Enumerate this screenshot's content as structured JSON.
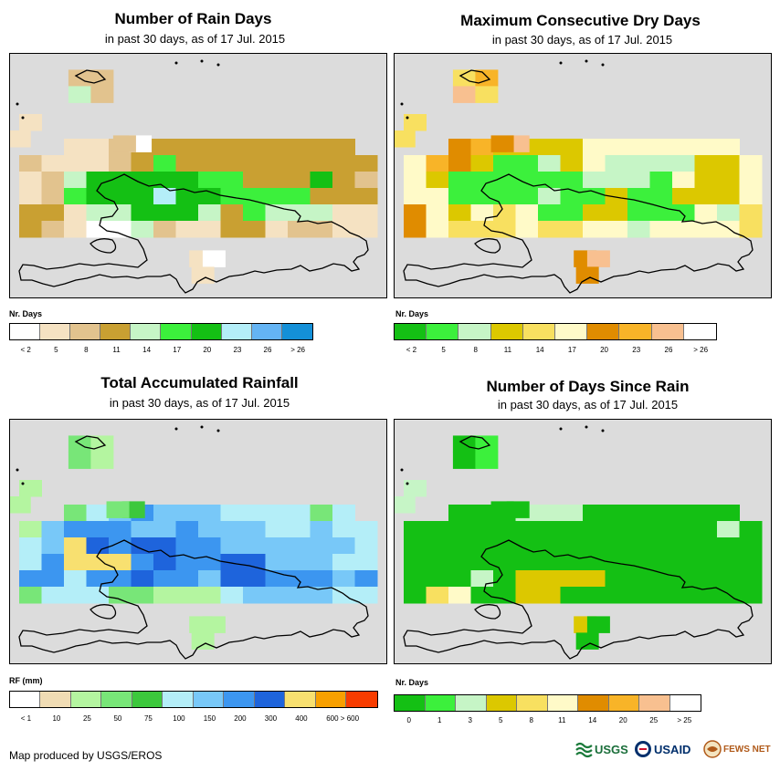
{
  "panels": [
    {
      "id": "rain-days",
      "title": "Number of Rain Days",
      "subtitle": "in past 30 days, as of 17 Jul. 2015",
      "legend_label": "Nr. Days",
      "legend_colors": [
        "#ffffff",
        "#f5e2c2",
        "#e2c38e",
        "#c9a032",
        "#c6f5c6",
        "#3cf03c",
        "#14c014",
        "#b4eef8",
        "#64b4f4",
        "#1490d8"
      ],
      "legend_ticks": [
        "< 2",
        "5",
        "8",
        "11",
        "14",
        "17",
        "20",
        "23",
        "26",
        "> 26"
      ],
      "tick_positions": "boundary",
      "cells": [
        [
          "e2c38e",
          "f5e2c2",
          "f5e2c2",
          "f5e2c2",
          "e2c38e",
          "c9a032",
          "c9a032",
          "c9a032",
          "c9a032",
          "c9a032",
          "c9a032",
          "c9a032",
          "c9a032",
          "c9a032",
          "c9a032",
          "e2c38e"
        ],
        [
          "e2c38e",
          "f5e2c2",
          "f5e2c2",
          "f5e2c2",
          "e2c38e",
          "c9a032",
          "3cf03c",
          "c9a032",
          "c9a032",
          "c9a032",
          "c9a032",
          "c9a032",
          "c9a032",
          "c9a032",
          "c9a032",
          "c9a032"
        ],
        [
          "f5e2c2",
          "e2c38e",
          "c6f5c6",
          "14c014",
          "14c014",
          "14c014",
          "14c014",
          "14c014",
          "3cf03c",
          "3cf03c",
          "c9a032",
          "c9a032",
          "c9a032",
          "14c014",
          "c9a032",
          "e2c38e"
        ],
        [
          "f5e2c2",
          "e2c38e",
          "3cf03c",
          "14c014",
          "14c014",
          "14c014",
          "b4eef8",
          "14c014",
          "14c014",
          "3cf03c",
          "3cf03c",
          "3cf03c",
          "3cf03c",
          "c9a032",
          "c9a032",
          "c9a032"
        ],
        [
          "c9a032",
          "c9a032",
          "f5e2c2",
          "c6f5c6",
          "c6f5c6",
          "14c014",
          "14c014",
          "14c014",
          "c6f5c6",
          "c9a032",
          "3cf03c",
          "c6f5c6",
          "c6f5c6",
          "c6f5c6",
          "f5e2c2",
          "f5e2c2"
        ],
        [
          "c9a032",
          "e2c38e",
          "f5e2c2",
          "ffffff",
          "ffffff",
          "c6f5c6",
          "e2c38e",
          "f5e2c2",
          "f5e2c2",
          "c9a032",
          "c9a032",
          "f5e2c2",
          "e2c38e",
          "e2c38e",
          "f5e2c2",
          "f5e2c2"
        ]
      ],
      "extra_cells": [
        {
          "col": 2.2,
          "row": -5,
          "c": "e2c38e"
        },
        {
          "col": 3.2,
          "row": -5,
          "c": "e2c38e"
        },
        {
          "col": 2.2,
          "row": -4,
          "c": "c6f5c6"
        },
        {
          "col": 3.2,
          "row": -4,
          "c": "e2c38e"
        },
        {
          "col": 0,
          "row": -2.3,
          "c": "f5e2c2"
        },
        {
          "col": -0.5,
          "row": -1.3,
          "c": "f5e2c2"
        },
        {
          "col": 4.9,
          "row": -1,
          "c": "ffffff"
        },
        {
          "col": 4.2,
          "row": -1,
          "c": "e2c38e"
        },
        {
          "col": 7.6,
          "row": 6,
          "c": "f5e2c2"
        },
        {
          "col": 8.2,
          "row": 6,
          "c": "ffffff"
        },
        {
          "col": 7.7,
          "row": 7,
          "c": "f5e2c2"
        }
      ]
    },
    {
      "id": "dry-days",
      "title": "Maximum Consecutive Dry Days",
      "subtitle": "in past 30 days, as of 17 Jul. 2015",
      "legend_label": "Nr. Days",
      "legend_colors": [
        "#14c014",
        "#3cf03c",
        "#c6f5c6",
        "#dcc800",
        "#f8e060",
        "#fffac8",
        "#e08c00",
        "#f8b428",
        "#f8c090",
        "#ffffff"
      ],
      "legend_ticks": [
        "< 2",
        "5",
        "8",
        "11",
        "14",
        "17",
        "20",
        "23",
        "26",
        "> 26"
      ],
      "tick_positions": "boundary",
      "cells": [
        [
          "fffac8",
          "e08c00",
          "e08c00",
          "f8b428",
          "dcc800",
          "dcc800",
          "dcc800",
          "dcc800",
          "fffac8",
          "fffac8",
          "fffac8",
          "fffac8",
          "fffac8",
          "fffac8",
          "fffac8",
          "fffac8"
        ],
        [
          "fffac8",
          "f8b428",
          "e08c00",
          "dcc800",
          "3cf03c",
          "3cf03c",
          "c6f5c6",
          "dcc800",
          "fffac8",
          "c6f5c6",
          "c6f5c6",
          "c6f5c6",
          "c6f5c6",
          "dcc800",
          "dcc800",
          "fffac8"
        ],
        [
          "fffac8",
          "dcc800",
          "3cf03c",
          "3cf03c",
          "3cf03c",
          "3cf03c",
          "3cf03c",
          "3cf03c",
          "c6f5c6",
          "c6f5c6",
          "c6f5c6",
          "3cf03c",
          "fffac8",
          "dcc800",
          "dcc800",
          "fffac8"
        ],
        [
          "fffac8",
          "fffac8",
          "3cf03c",
          "3cf03c",
          "3cf03c",
          "3cf03c",
          "c6f5c6",
          "3cf03c",
          "3cf03c",
          "dcc800",
          "3cf03c",
          "3cf03c",
          "dcc800",
          "dcc800",
          "dcc800",
          "fffac8"
        ],
        [
          "e08c00",
          "fffac8",
          "dcc800",
          "fffac8",
          "f8e060",
          "fffac8",
          "3cf03c",
          "3cf03c",
          "dcc800",
          "dcc800",
          "3cf03c",
          "3cf03c",
          "3cf03c",
          "fffac8",
          "c6f5c6",
          "f8e060"
        ],
        [
          "e08c00",
          "fffac8",
          "f8e060",
          "f8e060",
          "f8e060",
          "fffac8",
          "f8e060",
          "f8e060",
          "fffac8",
          "fffac8",
          "c6f5c6",
          "fffac8",
          "fffac8",
          "fffac8",
          "fffac8",
          "f8e060"
        ]
      ],
      "extra_cells": [
        {
          "col": 2.2,
          "row": -5,
          "c": "f8e060"
        },
        {
          "col": 3.2,
          "row": -5,
          "c": "f8b428"
        },
        {
          "col": 2.2,
          "row": -4,
          "c": "f8c090"
        },
        {
          "col": 3.2,
          "row": -4,
          "c": "f8e060"
        },
        {
          "col": 0,
          "row": -2.3,
          "c": "f8e060"
        },
        {
          "col": -0.5,
          "row": -1.3,
          "c": "f8e060"
        },
        {
          "col": 4.6,
          "row": -1,
          "c": "f8c090"
        },
        {
          "col": 3.9,
          "row": -1,
          "c": "e08c00"
        },
        {
          "col": 7.6,
          "row": 6,
          "c": "e08c00"
        },
        {
          "col": 8.2,
          "row": 6,
          "c": "f8c090"
        },
        {
          "col": 7.7,
          "row": 7,
          "c": "e08c00"
        }
      ]
    },
    {
      "id": "total-rainfall",
      "title": "Total Accumulated Rainfall",
      "subtitle": "in past 30 days, as of 17 Jul. 2015",
      "legend_label": "RF (mm)",
      "legend_colors": [
        "#ffffff",
        "#f0dcb4",
        "#b4f5a0",
        "#78e678",
        "#3cc83c",
        "#b4eef8",
        "#78c8f8",
        "#3c96f0",
        "#1e64dc",
        "#f8e070",
        "#f8a000",
        "#f83c00"
      ],
      "legend_ticks": [
        "< 1",
        "10",
        "25",
        "50",
        "75",
        "100",
        "150",
        "200",
        "300",
        "400",
        "600 > 600"
      ],
      "tick_positions": "boundary",
      "cells": [
        [
          "b4f5a0",
          "78e678",
          "78e678",
          "b4eef8",
          "78c8f8",
          "3c96f0",
          "78c8f8",
          "78c8f8",
          "78c8f8",
          "b4eef8",
          "b4eef8",
          "b4eef8",
          "b4eef8",
          "78e678",
          "b4eef8",
          "b4eef8"
        ],
        [
          "b4f5a0",
          "78c8f8",
          "3c96f0",
          "3c96f0",
          "3c96f0",
          "78c8f8",
          "78c8f8",
          "3c96f0",
          "78c8f8",
          "78c8f8",
          "78c8f8",
          "b4eef8",
          "b4eef8",
          "78c8f8",
          "b4eef8",
          "b4eef8"
        ],
        [
          "b4eef8",
          "78c8f8",
          "f8e070",
          "1e64dc",
          "3c96f0",
          "1e64dc",
          "1e64dc",
          "3c96f0",
          "3c96f0",
          "78c8f8",
          "78c8f8",
          "78c8f8",
          "78c8f8",
          "78c8f8",
          "78c8f8",
          "b4eef8"
        ],
        [
          "b4eef8",
          "3c96f0",
          "f8e070",
          "f8e070",
          "f8e070",
          "3c96f0",
          "1e64dc",
          "3c96f0",
          "3c96f0",
          "1e64dc",
          "1e64dc",
          "78c8f8",
          "78c8f8",
          "78c8f8",
          "b4eef8",
          "b4eef8"
        ],
        [
          "3c96f0",
          "3c96f0",
          "b4eef8",
          "3c96f0",
          "3c96f0",
          "1e64dc",
          "3c96f0",
          "3c96f0",
          "78c8f8",
          "1e64dc",
          "1e64dc",
          "3c96f0",
          "3c96f0",
          "3c96f0",
          "78c8f8",
          "3c96f0"
        ],
        [
          "78e678",
          "b4eef8",
          "b4eef8",
          "b4eef8",
          "78e678",
          "78e678",
          "b4f5a0",
          "b4f5a0",
          "b4f5a0",
          "b4eef8",
          "78c8f8",
          "78c8f8",
          "78c8f8",
          "78c8f8",
          "b4eef8",
          "b4eef8"
        ]
      ],
      "extra_cells": [
        {
          "col": 2.2,
          "row": -5,
          "c": "78e678"
        },
        {
          "col": 3.2,
          "row": -5,
          "c": "b4f5a0"
        },
        {
          "col": 2.2,
          "row": -4,
          "c": "78e678"
        },
        {
          "col": 3.2,
          "row": -4,
          "c": "b4f5a0"
        },
        {
          "col": 0,
          "row": -2.3,
          "c": "b4f5a0"
        },
        {
          "col": -0.5,
          "row": -1.3,
          "c": "b4f5a0"
        },
        {
          "col": 4.6,
          "row": -1,
          "c": "3cc83c"
        },
        {
          "col": 3.9,
          "row": -1,
          "c": "78e678"
        },
        {
          "col": 7.6,
          "row": 6,
          "c": "b4f5a0"
        },
        {
          "col": 8.2,
          "row": 6,
          "c": "b4f5a0"
        },
        {
          "col": 7.7,
          "row": 7,
          "c": "b4f5a0"
        }
      ]
    },
    {
      "id": "days-since-rain",
      "title": "Number of Days Since Rain",
      "subtitle": "in past 30 days, as of 17 Jul. 2015",
      "legend_label": "Nr. Days",
      "legend_colors": [
        "#14c014",
        "#3cf03c",
        "#c6f5c6",
        "#dcc800",
        "#f8e060",
        "#fffac8",
        "#e08c00",
        "#f8b428",
        "#f8c090",
        "#ffffff"
      ],
      "legend_ticks": [
        "0",
        "1",
        "3",
        "5",
        "8",
        "11",
        "14",
        "20",
        "25",
        "> 25"
      ],
      "tick_positions": "center",
      "cells": [
        [
          "14c014",
          "14c014",
          "14c014",
          "14c014",
          "14c014",
          "c6f5c6",
          "c6f5c6",
          "c6f5c6",
          "14c014",
          "14c014",
          "14c014",
          "14c014",
          "14c014",
          "14c014",
          "14c014",
          "14c014"
        ],
        [
          "14c014",
          "14c014",
          "14c014",
          "14c014",
          "14c014",
          "14c014",
          "14c014",
          "14c014",
          "14c014",
          "14c014",
          "14c014",
          "14c014",
          "14c014",
          "14c014",
          "c6f5c6",
          "14c014"
        ],
        [
          "14c014",
          "14c014",
          "14c014",
          "14c014",
          "14c014",
          "14c014",
          "14c014",
          "14c014",
          "14c014",
          "14c014",
          "14c014",
          "14c014",
          "14c014",
          "14c014",
          "14c014",
          "14c014"
        ],
        [
          "14c014",
          "14c014",
          "14c014",
          "14c014",
          "14c014",
          "14c014",
          "14c014",
          "14c014",
          "14c014",
          "14c014",
          "14c014",
          "14c014",
          "14c014",
          "14c014",
          "14c014",
          "14c014"
        ],
        [
          "14c014",
          "14c014",
          "14c014",
          "c6f5c6",
          "14c014",
          "dcc800",
          "dcc800",
          "dcc800",
          "dcc800",
          "14c014",
          "14c014",
          "14c014",
          "14c014",
          "14c014",
          "14c014",
          "14c014"
        ],
        [
          "14c014",
          "f8e060",
          "fffac8",
          "14c014",
          "14c014",
          "dcc800",
          "dcc800",
          "14c014",
          "14c014",
          "14c014",
          "14c014",
          "14c014",
          "14c014",
          "14c014",
          "14c014",
          "14c014"
        ]
      ],
      "extra_cells": [
        {
          "col": 2.2,
          "row": -5,
          "c": "14c014"
        },
        {
          "col": 3.2,
          "row": -5,
          "c": "3cf03c"
        },
        {
          "col": 2.2,
          "row": -4,
          "c": "14c014"
        },
        {
          "col": 3.2,
          "row": -4,
          "c": "3cf03c"
        },
        {
          "col": 0,
          "row": -2.3,
          "c": "c6f5c6"
        },
        {
          "col": -0.5,
          "row": -1.3,
          "c": "c6f5c6"
        },
        {
          "col": 4.6,
          "row": -1,
          "c": "14c014"
        },
        {
          "col": 3.9,
          "row": -1,
          "c": "14c014"
        },
        {
          "col": 7.6,
          "row": 6,
          "c": "dcc800"
        },
        {
          "col": 8.2,
          "row": 6,
          "c": "14c014"
        },
        {
          "col": 7.7,
          "row": 7,
          "c": "14c014"
        }
      ]
    }
  ],
  "footer": {
    "credit": "Map produced by USGS/EROS"
  },
  "logos": {
    "usgs": "USGS",
    "usaid": "USAID",
    "fewsnet": "FEWS NET"
  }
}
